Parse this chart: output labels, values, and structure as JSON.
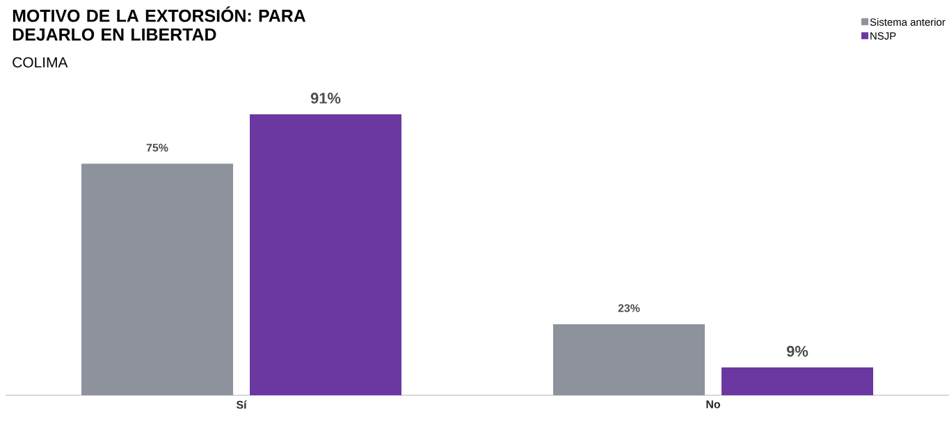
{
  "chart_data": {
    "type": "bar",
    "title": "MOTIVO DE LA EXTORSIÓN: PARA DEJARLO EN LIBERTAD",
    "subtitle": "COLIMA",
    "categories": [
      "Sí",
      "No"
    ],
    "series": [
      {
        "name": "Sistema anterior",
        "color": "#8e929d",
        "values": [
          75,
          23
        ],
        "value_labels": [
          "75%",
          "23%"
        ]
      },
      {
        "name": "NSJP",
        "color": "#6a38a0",
        "values": [
          91,
          9
        ],
        "value_labels": [
          "91%",
          "9%"
        ]
      }
    ],
    "legend": "top right"
  }
}
